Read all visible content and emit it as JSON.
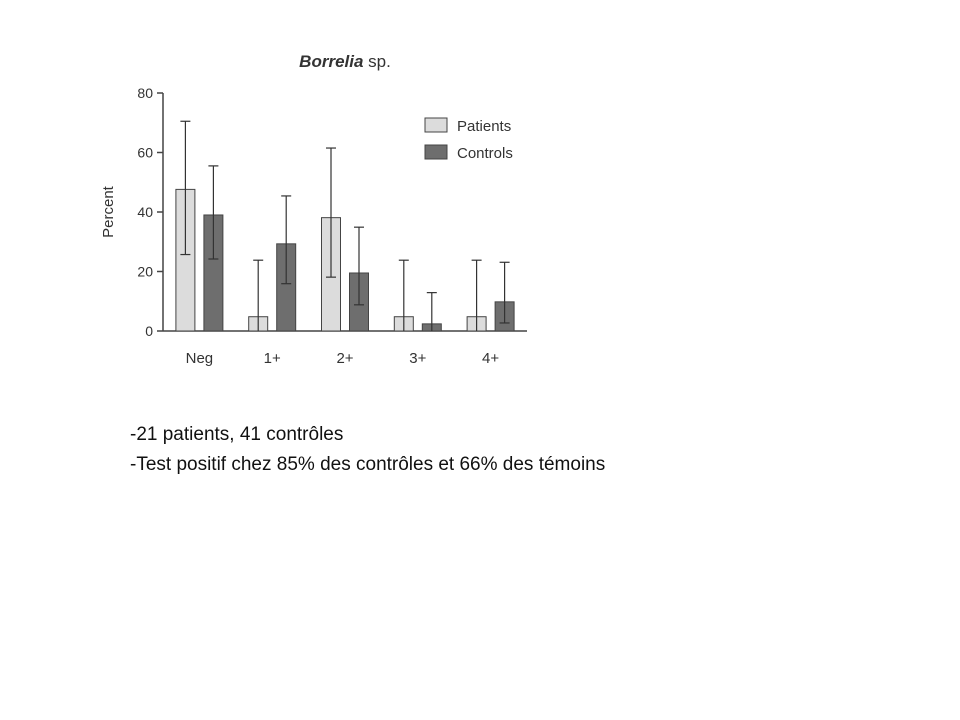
{
  "slide": {
    "notes": [
      "-21 patients, 41 contrôles",
      "-Test positif chez 85% des contrôles et 66% des témoins"
    ]
  },
  "chart_data": {
    "type": "bar",
    "title_bold": "Borrelia",
    "title_rest": " sp.",
    "xlabel": "",
    "ylabel": "Percent",
    "ylim": [
      0,
      80
    ],
    "yticks": [
      0,
      20,
      40,
      60,
      80
    ],
    "categories": [
      "Neg",
      "1+",
      "2+",
      "3+",
      "4+"
    ],
    "series": [
      {
        "name": "Patients",
        "color": "#dcdcdc",
        "values": [
          47.6,
          4.8,
          38.1,
          4.8,
          4.8
        ],
        "error_low": [
          25.7,
          0,
          18.1,
          0,
          0
        ],
        "error_high": [
          70.5,
          23.8,
          61.5,
          23.8,
          23.8
        ]
      },
      {
        "name": "Controls",
        "color": "#6e6e6e",
        "values": [
          39.0,
          29.3,
          19.5,
          2.4,
          9.8
        ],
        "error_low": [
          24.2,
          15.9,
          8.8,
          0,
          2.7
        ],
        "error_high": [
          55.5,
          45.4,
          34.9,
          12.9,
          23.1
        ]
      }
    ],
    "legend_position": "top-right",
    "grid": false
  }
}
